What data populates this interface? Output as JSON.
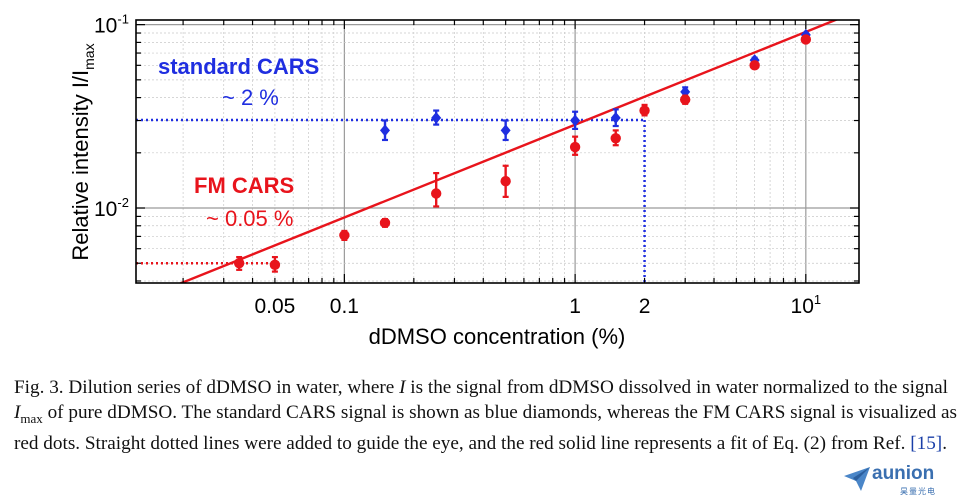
{
  "chart_data": {
    "type": "scatter",
    "x_scale": "log",
    "y_scale": "log",
    "xlim": [
      0.0125,
      17
    ],
    "ylim": [
      0.0039,
      0.106
    ],
    "xlabel": "dDMSO concentration (%)",
    "ylabel_main": "Relative intensity I/I",
    "ylabel_sub": "max",
    "x_ticks": [
      {
        "v": 0.05,
        "label": "0.05"
      },
      {
        "v": 0.1,
        "label": "0.1"
      },
      {
        "v": 1,
        "label": "1"
      },
      {
        "v": 2,
        "label": "2"
      },
      {
        "v": 10,
        "label": "10",
        "sup": "1"
      }
    ],
    "y_ticks": [
      {
        "v": 0.01,
        "label": "10",
        "sup": "-2"
      },
      {
        "v": 0.1,
        "label": "10",
        "sup": "-1"
      }
    ],
    "grid": true,
    "series": [
      {
        "name": "standard CARS",
        "marker": "diamond",
        "color": "#1f2ee0",
        "points": [
          {
            "x": 0.15,
            "y": 0.0265,
            "lo": 0.0235,
            "hi": 0.03
          },
          {
            "x": 0.25,
            "y": 0.031,
            "lo": 0.0285,
            "hi": 0.034
          },
          {
            "x": 0.5,
            "y": 0.0265,
            "lo": 0.0235,
            "hi": 0.03
          },
          {
            "x": 1.0,
            "y": 0.03,
            "lo": 0.027,
            "hi": 0.0335
          },
          {
            "x": 1.5,
            "y": 0.031,
            "lo": 0.028,
            "hi": 0.0345
          },
          {
            "x": 3.0,
            "y": 0.043,
            "lo": 0.0405,
            "hi": 0.0455
          },
          {
            "x": 6.0,
            "y": 0.064,
            "lo": 0.062,
            "hi": 0.066
          },
          {
            "x": 10.0,
            "y": 0.088,
            "lo": 0.086,
            "hi": 0.09
          }
        ]
      },
      {
        "name": "FM CARS",
        "marker": "circle",
        "color": "#e8141c",
        "points": [
          {
            "x": 0.035,
            "y": 0.005,
            "lo": 0.0046,
            "hi": 0.0054
          },
          {
            "x": 0.05,
            "y": 0.0049,
            "lo": 0.0045,
            "hi": 0.0054
          },
          {
            "x": 0.1,
            "y": 0.0071,
            "lo": 0.0067,
            "hi": 0.0075
          },
          {
            "x": 0.15,
            "y": 0.0083,
            "lo": 0.0079,
            "hi": 0.0087
          },
          {
            "x": 0.25,
            "y": 0.012,
            "lo": 0.0102,
            "hi": 0.0155
          },
          {
            "x": 0.5,
            "y": 0.014,
            "lo": 0.0115,
            "hi": 0.017
          },
          {
            "x": 1.0,
            "y": 0.0215,
            "lo": 0.0195,
            "hi": 0.0245
          },
          {
            "x": 1.5,
            "y": 0.024,
            "lo": 0.022,
            "hi": 0.0265
          },
          {
            "x": 2.0,
            "y": 0.034,
            "lo": 0.032,
            "hi": 0.0365
          },
          {
            "x": 3.0,
            "y": 0.039,
            "lo": 0.037,
            "hi": 0.041
          },
          {
            "x": 6.0,
            "y": 0.06,
            "lo": 0.058,
            "hi": 0.062
          },
          {
            "x": 10.0,
            "y": 0.083,
            "lo": 0.081,
            "hi": 0.085
          }
        ]
      }
    ],
    "fit_line": {
      "color": "#e8141c",
      "points": [
        [
          0.0125,
          0.0031
        ],
        [
          17,
          0.1194
        ]
      ]
    },
    "guide_lines": {
      "blue_y": 0.0302,
      "blue_x": 2.0,
      "red_y": 0.005,
      "red_x_end": 0.05
    },
    "annotations": {
      "standard": "standard CARS",
      "standard_pct": "~ 2 %",
      "fm": "FM CARS",
      "fm_pct": "~ 0.05 %"
    }
  },
  "caption": {
    "fig": "Fig. 3.",
    "t1": " Dilution series of dDMSO in water, where ",
    "i1": "I",
    "t2": " is the signal from dDMSO dissolved in water normalized to the signal ",
    "i2": "I",
    "i2_sub": "max",
    "t3": " of pure dDMSO. The standard CARS signal is shown as blue diamonds, whereas the FM CARS signal is visualized as red dots. Straight dotted lines were added to guide the eye, and the red solid line represents a fit of Eq. (2) from Ref. ",
    "ref": "[15]",
    "t4": "."
  },
  "logo": {
    "name": "aunion",
    "sub": "昊量光电"
  }
}
